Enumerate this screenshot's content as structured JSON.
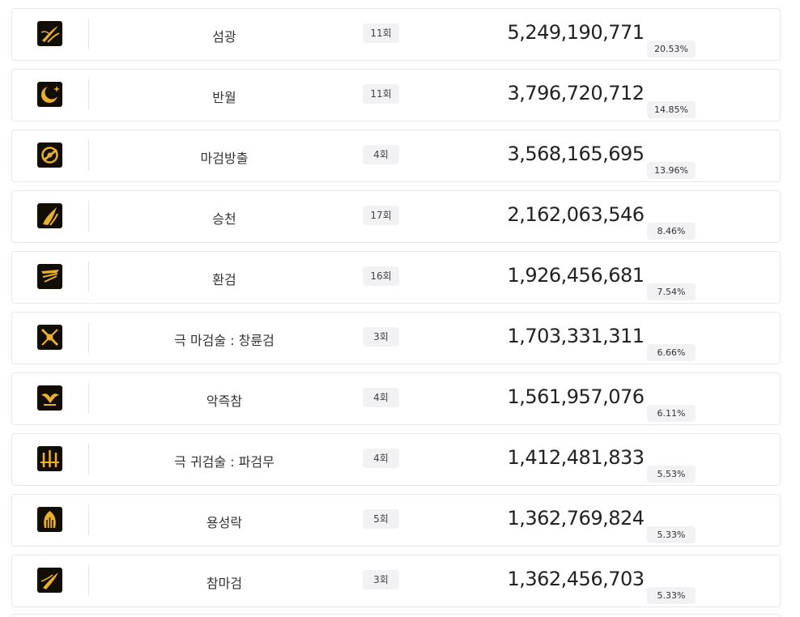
{
  "skills": [
    {
      "icon": "golden-slash-icon",
      "name": "섬광",
      "hits": "11회",
      "damage": "5,249,190,771",
      "pct": "20.53%"
    },
    {
      "icon": "crescent-moon-icon",
      "name": "반월",
      "hits": "11회",
      "damage": "3,796,720,712",
      "pct": "14.85%"
    },
    {
      "icon": "sword-burst-icon",
      "name": "마검방출",
      "hits": "4회",
      "damage": "3,568,165,695",
      "pct": "13.96%"
    },
    {
      "icon": "rising-flame-icon",
      "name": "승천",
      "hits": "17회",
      "damage": "2,162,063,546",
      "pct": "8.46%"
    },
    {
      "icon": "phantom-blade-icon",
      "name": "환검",
      "hits": "16회",
      "damage": "1,926,456,681",
      "pct": "7.54%"
    },
    {
      "icon": "crossed-swords-icon",
      "name": "극 마검술 : 창륜검",
      "hits": "3회",
      "damage": "1,703,331,311",
      "pct": "6.66%"
    },
    {
      "icon": "demon-claw-icon",
      "name": "악즉참",
      "hits": "4회",
      "damage": "1,561,957,076",
      "pct": "6.11%"
    },
    {
      "icon": "blade-storm-icon",
      "name": "극 귀검술 : 파검무",
      "hits": "4회",
      "damage": "1,412,481,833",
      "pct": "5.53%"
    },
    {
      "icon": "dragon-fall-icon",
      "name": "용성락",
      "hits": "5회",
      "damage": "1,362,769,824",
      "pct": "5.33%"
    },
    {
      "icon": "demon-blade-strike-icon",
      "name": "참마검",
      "hits": "3회",
      "damage": "1,362,456,703",
      "pct": "5.33%"
    }
  ],
  "colors": {
    "icon_gold": "#e8b030",
    "icon_bg": "#120d05",
    "badge_bg": "#f2f2f4",
    "border": "#e8e8ea"
  }
}
